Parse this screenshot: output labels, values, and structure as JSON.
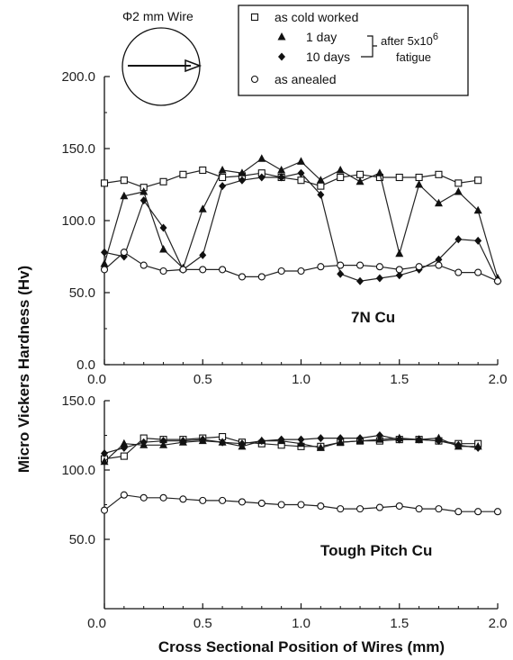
{
  "diagram": {
    "label": "Φ2 mm Wire"
  },
  "legend": {
    "entries": [
      {
        "label": "as cold worked",
        "marker": "square"
      },
      {
        "label": "1 day",
        "marker": "triangle"
      },
      {
        "label": "10 days",
        "marker": "diamond"
      },
      {
        "label": "as anealed",
        "marker": "circle"
      }
    ],
    "note_line1": "after 5x10",
    "note_exp": "6",
    "note_line2": "fatigue"
  },
  "y_axis_title": "Micro Vickers Hardness (Hv)",
  "x_axis_title": "Cross Sectional Position of Wires (mm)",
  "chart_data": [
    {
      "type": "line",
      "panel_label": "7N Cu",
      "xlim": [
        0.0,
        2.0
      ],
      "ylim": [
        0.0,
        200.0
      ],
      "x_ticks": [
        "0.0",
        "0.5",
        "1.0",
        "1.5",
        "2.0"
      ],
      "x_tick_values": [
        0,
        0.5,
        1.0,
        1.5,
        2.0
      ],
      "y_ticks": [
        "0.0",
        "50.0",
        "100.0",
        "150.0",
        "200.0"
      ],
      "y_tick_values": [
        0,
        50,
        100,
        150,
        200
      ],
      "series": [
        {
          "name": "as cold worked",
          "marker": "square",
          "x": [
            0,
            0.1,
            0.2,
            0.3,
            0.4,
            0.5,
            0.6,
            0.7,
            0.8,
            0.9,
            1.0,
            1.1,
            1.2,
            1.3,
            1.4,
            1.5,
            1.6,
            1.7,
            1.8,
            1.9
          ],
          "y": [
            126,
            128,
            123,
            127,
            132,
            135,
            130,
            131,
            133,
            130,
            128,
            124,
            130,
            132,
            130,
            130,
            130,
            132,
            126,
            128
          ]
        },
        {
          "name": "1 day",
          "marker": "triangle",
          "x": [
            0,
            0.1,
            0.2,
            0.3,
            0.4,
            0.5,
            0.6,
            0.7,
            0.8,
            0.9,
            1.0,
            1.1,
            1.2,
            1.3,
            1.4,
            1.5,
            1.6,
            1.7,
            1.8,
            1.9,
            2.0
          ],
          "y": [
            70,
            117,
            120,
            80,
            67,
            108,
            135,
            133,
            143,
            135,
            141,
            128,
            135,
            127,
            133,
            77,
            125,
            112,
            120,
            107,
            60
          ]
        },
        {
          "name": "10 days",
          "marker": "diamond",
          "x": [
            0,
            0.1,
            0.2,
            0.3,
            0.4,
            0.5,
            0.6,
            0.7,
            0.8,
            0.9,
            1.0,
            1.1,
            1.2,
            1.3,
            1.4,
            1.5,
            1.6,
            1.7,
            1.8,
            1.9,
            2.0
          ],
          "y": [
            78,
            75,
            114,
            95,
            66,
            76,
            124,
            128,
            130,
            130,
            133,
            118,
            63,
            58,
            60,
            62,
            66,
            73,
            87,
            86,
            58
          ]
        },
        {
          "name": "as anealed",
          "marker": "circle",
          "x": [
            0,
            0.1,
            0.2,
            0.3,
            0.4,
            0.5,
            0.6,
            0.7,
            0.8,
            0.9,
            1.0,
            1.1,
            1.2,
            1.3,
            1.4,
            1.5,
            1.6,
            1.7,
            1.8,
            1.9,
            2.0
          ],
          "y": [
            66,
            78,
            69,
            65,
            66,
            66,
            66,
            61,
            61,
            65,
            65,
            68,
            69,
            69,
            68,
            66,
            68,
            69,
            64,
            64,
            58
          ]
        }
      ]
    },
    {
      "type": "line",
      "panel_label": "Tough Pitch Cu",
      "xlim": [
        0.0,
        2.0
      ],
      "ylim": [
        0.0,
        150.0
      ],
      "x_ticks": [
        "0.0",
        "0.5",
        "1.0",
        "1.5",
        "2.0"
      ],
      "x_tick_values": [
        0,
        0.5,
        1.0,
        1.5,
        2.0
      ],
      "y_ticks": [
        "50.0",
        "100.0",
        "150.0"
      ],
      "y_tick_values": [
        50,
        100,
        150
      ],
      "series": [
        {
          "name": "as cold worked",
          "marker": "square",
          "x": [
            0,
            0.1,
            0.2,
            0.3,
            0.4,
            0.5,
            0.6,
            0.7,
            0.8,
            0.9,
            1.0,
            1.1,
            1.2,
            1.3,
            1.4,
            1.5,
            1.6,
            1.7,
            1.8,
            1.9
          ],
          "y": [
            108,
            110,
            123,
            122,
            122,
            123,
            124,
            120,
            119,
            118,
            117,
            117,
            120,
            121,
            121,
            122,
            122,
            121,
            119,
            119
          ]
        },
        {
          "name": "1 day",
          "marker": "triangle",
          "x": [
            0,
            0.1,
            0.2,
            0.3,
            0.4,
            0.5,
            0.6,
            0.7,
            0.8,
            0.9,
            1.0,
            1.1,
            1.2,
            1.3,
            1.4,
            1.5,
            1.6,
            1.7,
            1.8,
            1.9
          ],
          "y": [
            106,
            119,
            118,
            118,
            120,
            121,
            120,
            117,
            121,
            121,
            119,
            116,
            120,
            121,
            122,
            123,
            122,
            123,
            117,
            117
          ]
        },
        {
          "name": "10 days",
          "marker": "diamond",
          "x": [
            0,
            0.1,
            0.2,
            0.3,
            0.4,
            0.5,
            0.6,
            0.7,
            0.8,
            0.9,
            1.0,
            1.1,
            1.2,
            1.3,
            1.4,
            1.5,
            1.6,
            1.7,
            1.8,
            1.9
          ],
          "y": [
            112,
            116,
            120,
            121,
            121,
            122,
            120,
            119,
            121,
            122,
            122,
            123,
            123,
            123,
            125,
            122,
            122,
            121,
            118,
            116
          ]
        },
        {
          "name": "as anealed",
          "marker": "circle",
          "x": [
            0,
            0.1,
            0.2,
            0.3,
            0.4,
            0.5,
            0.6,
            0.7,
            0.8,
            0.9,
            1.0,
            1.1,
            1.2,
            1.3,
            1.4,
            1.5,
            1.6,
            1.7,
            1.8,
            1.9,
            2.0
          ],
          "y": [
            71,
            82,
            80,
            80,
            79,
            78,
            78,
            77,
            76,
            75,
            75,
            74,
            72,
            72,
            73,
            74,
            72,
            72,
            70,
            70,
            70
          ]
        }
      ]
    }
  ]
}
